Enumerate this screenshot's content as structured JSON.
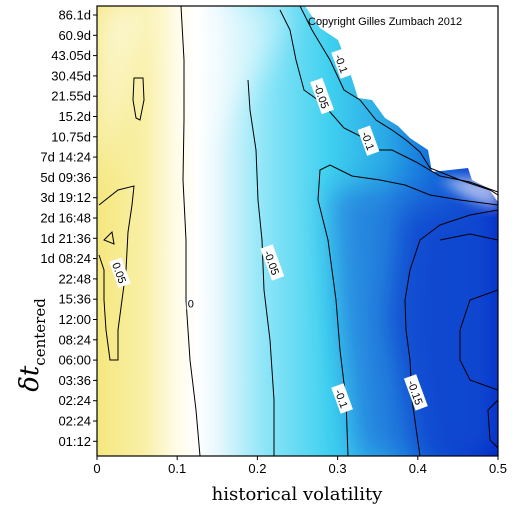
{
  "chart_data": {
    "type": "heatmap",
    "title": "",
    "copyright": "Copyright Gilles Zumbach 2012",
    "xlabel": "historical volatility",
    "ylabel": {
      "main": "δt",
      "subscript": "centered"
    },
    "xlim": [
      0,
      0.5
    ],
    "x_ticks": [
      "0",
      "0.1",
      "0.2",
      "0.3",
      "0.4",
      "0.5"
    ],
    "y_ticks": [
      "86.1d",
      "60.9d",
      "43.05d",
      "30.45d",
      "21.55d",
      "15.2d",
      "10.75d",
      "7d 14:24",
      "5d 09:36",
      "3d 19:12",
      "2d 16:48",
      "1d 21:36",
      "1d 08:24",
      "22:48",
      "15:36",
      "12:00",
      "08:24",
      "06:00",
      "03:36",
      "02:24",
      "02:24",
      "01:12"
    ],
    "colors": {
      "positive": "#f7eb8a",
      "zero": "#ffffff",
      "negative_low": "#3fd0ef",
      "negative_high": "#0020c8"
    },
    "contour_levels": [
      "0.05",
      "0",
      "-0.05",
      "-0.1",
      "-0.15"
    ],
    "contour_labels": [
      {
        "text": "0.05",
        "x": 0.028,
        "y_index": 12.7
      },
      {
        "text": "0",
        "x": 0.117,
        "y_index": 14.2
      },
      {
        "text": "-0.05",
        "x": 0.218,
        "y_index": 12.2
      },
      {
        "text": "-0.1",
        "x": 0.305,
        "y_index": 2.4
      },
      {
        "text": "-0.05",
        "x": 0.28,
        "y_index": 4.0
      },
      {
        "text": "-0.1",
        "x": 0.338,
        "y_index": 6.2
      },
      {
        "text": "-0.1",
        "x": 0.305,
        "y_index": 18.9
      },
      {
        "text": "-0.15",
        "x": 0.397,
        "y_index": 18.6
      }
    ]
  }
}
